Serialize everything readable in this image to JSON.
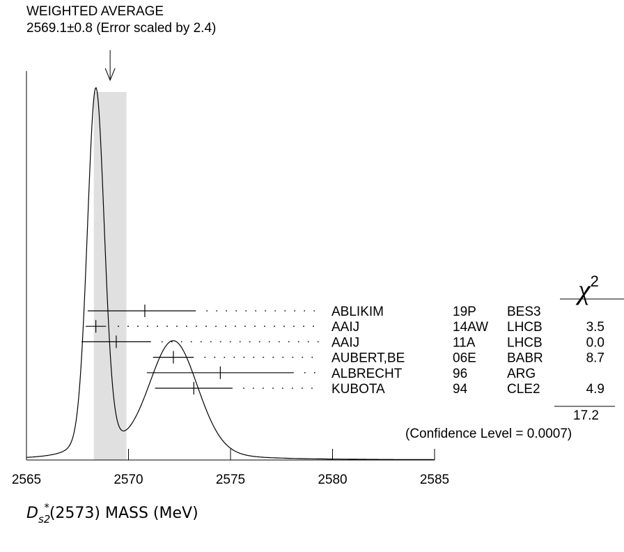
{
  "header": {
    "title": "WEIGHTED AVERAGE",
    "value_text": "2569.1±0.8 (Error scaled by 2.4)"
  },
  "chi_header": "χ",
  "chi_header_exp": "2",
  "xlabel": {
    "symbol": "D",
    "subscript": "s2",
    "superscript": "*",
    "rest": "(2573) MASS (MeV)"
  },
  "confidence_text": "(Confidence Level = 0.0007)",
  "chi2_total": "17.2",
  "chart_data": {
    "type": "scatter",
    "xlim": [
      2565,
      2585
    ],
    "x_ticks": [
      2565,
      2570,
      2575,
      2580,
      2585
    ],
    "x_tick_labels": [
      "2565",
      "2570",
      "2575",
      "2580",
      "2585"
    ],
    "weighted_average": {
      "value": 2569.1,
      "error": 0.8,
      "band": [
        2568.3,
        2569.9
      ]
    },
    "ideogram_peaks": [
      {
        "x": 2568.4,
        "height": 1.0,
        "width": 0.42
      },
      {
        "x": 2572.2,
        "height": 0.32,
        "width": 1.2
      }
    ],
    "measurements": [
      {
        "name": "ABLIKIM",
        "ref": "19P",
        "exp": "BES3",
        "value": 2570.8,
        "low": 2568.0,
        "high": 2573.3,
        "chi2": ""
      },
      {
        "name": "AAIJ",
        "ref": "14AW",
        "exp": "LHCB",
        "value": 2568.4,
        "low": 2567.9,
        "high": 2568.9,
        "chi2": "3.5"
      },
      {
        "name": "AAIJ",
        "ref": "11A",
        "exp": "LHCB",
        "value": 2569.4,
        "low": 2567.7,
        "high": 2571.1,
        "chi2": "0.0"
      },
      {
        "name": "AUBERT,BE",
        "ref": "06E",
        "exp": "BABR",
        "value": 2572.2,
        "low": 2571.2,
        "high": 2573.2,
        "chi2": "8.7"
      },
      {
        "name": "ALBRECHT",
        "ref": "96",
        "exp": "ARG",
        "value": 2574.5,
        "low": 2570.9,
        "high": 2578.1,
        "chi2": ""
      },
      {
        "name": "KUBOTA",
        "ref": "94",
        "exp": "CLE2",
        "value": 2573.2,
        "low": 2571.3,
        "high": 2575.1,
        "chi2": "4.9"
      }
    ],
    "chi2_sum": "17.2"
  },
  "colors": {
    "band": "#e0e0e0",
    "ink": "#000000",
    "background": "#ffffff"
  }
}
